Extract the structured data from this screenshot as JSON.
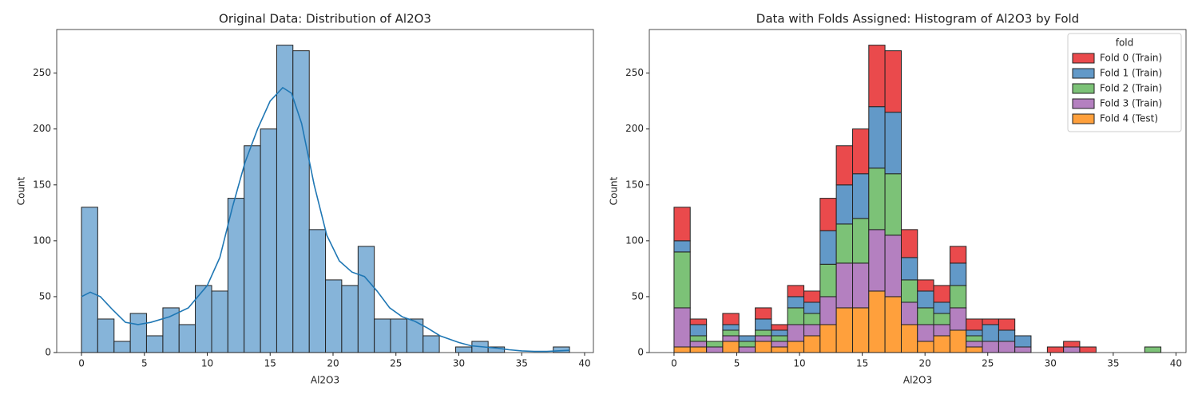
{
  "chart_data": [
    {
      "type": "histogram",
      "title": "Original Data: Distribution of Al2O3",
      "x_label": "Al2O3",
      "y_label": "Count",
      "bins": [
        0,
        1.29,
        2.59,
        3.88,
        5.17,
        6.47,
        7.76,
        9.05,
        10.35,
        11.64,
        12.93,
        14.23,
        15.52,
        16.81,
        18.11,
        19.4,
        20.69,
        21.99,
        23.28,
        24.57,
        25.87,
        27.16,
        28.45,
        29.75,
        31.04,
        32.33,
        33.63,
        34.92,
        36.21,
        37.51,
        38.8
      ],
      "values": [
        130,
        30,
        10,
        35,
        15,
        40,
        25,
        60,
        55,
        138,
        185,
        200,
        275,
        270,
        110,
        65,
        60,
        95,
        30,
        30,
        30,
        15,
        0,
        5,
        10,
        5,
        0,
        0,
        0,
        5
      ],
      "color": "#86b4d9",
      "kde": {
        "color": "#1f77b4",
        "x": [
          0,
          0.7,
          1.5,
          2.5,
          3.5,
          4.5,
          5.5,
          7,
          8.5,
          10,
          11,
          12,
          13,
          14,
          15,
          16,
          16.7,
          17.5,
          18.5,
          19.5,
          20.5,
          21.5,
          22.5,
          23.5,
          24.5,
          25.5,
          26.5,
          27.5,
          28.5,
          30,
          31,
          32,
          33,
          34,
          35,
          36,
          37,
          38.8
        ],
        "y": [
          50,
          54,
          50,
          38,
          27,
          25,
          27,
          32,
          40,
          60,
          85,
          130,
          170,
          200,
          225,
          237,
          232,
          205,
          150,
          105,
          82,
          72,
          68,
          55,
          40,
          32,
          28,
          22,
          15,
          9,
          6,
          5,
          4,
          2.5,
          1.5,
          1,
          1,
          2
        ]
      },
      "xlim": [
        -1.97,
        40.7
      ],
      "ylim": [
        0,
        289
      ],
      "xticks": [
        0,
        5,
        10,
        15,
        20,
        25,
        30,
        35,
        40
      ],
      "yticks": [
        0,
        50,
        100,
        150,
        200,
        250
      ]
    },
    {
      "type": "histogram",
      "title": "Data with Folds Assigned: Histogram of Al2O3 by Fold",
      "x_label": "Al2O3",
      "y_label": "Count",
      "stacked": true,
      "legend_title": "fold",
      "legend": "upper right",
      "bins": [
        0,
        1.29,
        2.59,
        3.88,
        5.17,
        6.47,
        7.76,
        9.05,
        10.35,
        11.64,
        12.93,
        14.23,
        15.52,
        16.81,
        18.11,
        19.4,
        20.69,
        21.99,
        23.28,
        24.57,
        25.87,
        27.16,
        28.45,
        29.75,
        31.04,
        32.33,
        33.63,
        34.92,
        36.21,
        37.51,
        38.8
      ],
      "series": [
        {
          "name": "Fold 0 (Train)",
          "color": "#ea4a4c",
          "values": [
            30,
            5,
            0,
            10,
            0,
            10,
            5,
            10,
            10,
            29,
            35,
            40,
            55,
            55,
            25,
            10,
            15,
            15,
            10,
            5,
            10,
            0,
            0,
            5,
            5,
            5,
            0,
            0,
            0,
            0
          ]
        },
        {
          "name": "Fold 1 (Train)",
          "color": "#6299c8",
          "values": [
            10,
            10,
            0,
            5,
            5,
            10,
            5,
            10,
            10,
            30,
            35,
            40,
            55,
            55,
            20,
            15,
            10,
            20,
            5,
            15,
            10,
            10,
            0,
            0,
            0,
            0,
            0,
            0,
            0,
            0
          ]
        },
        {
          "name": "Fold 2 (Train)",
          "color": "#7cc277",
          "values": [
            50,
            5,
            5,
            5,
            5,
            5,
            5,
            15,
            10,
            29,
            35,
            40,
            55,
            55,
            20,
            15,
            10,
            20,
            5,
            0,
            0,
            0,
            0,
            0,
            0,
            0,
            0,
            0,
            0,
            5
          ]
        },
        {
          "name": "Fold 3 (Train)",
          "color": "#b480c0",
          "values": [
            35,
            5,
            5,
            5,
            5,
            5,
            5,
            15,
            10,
            25,
            40,
            40,
            55,
            55,
            20,
            15,
            10,
            20,
            5,
            10,
            10,
            5,
            0,
            0,
            5,
            0,
            0,
            0,
            0,
            0
          ]
        },
        {
          "name": "Fold 4 (Test)",
          "color": "#ffa03c",
          "values": [
            5,
            5,
            0,
            10,
            0,
            10,
            5,
            10,
            15,
            25,
            40,
            40,
            55,
            50,
            25,
            10,
            15,
            20,
            5,
            0,
            0,
            0,
            0,
            0,
            0,
            0,
            0,
            0,
            0,
            0
          ]
        }
      ],
      "xlim": [
        -1.97,
        40.8
      ],
      "ylim": [
        0,
        289
      ],
      "xticks": [
        0,
        5,
        10,
        15,
        20,
        25,
        30,
        35,
        40
      ],
      "yticks": [
        0,
        50,
        100,
        150,
        200,
        250
      ]
    }
  ]
}
